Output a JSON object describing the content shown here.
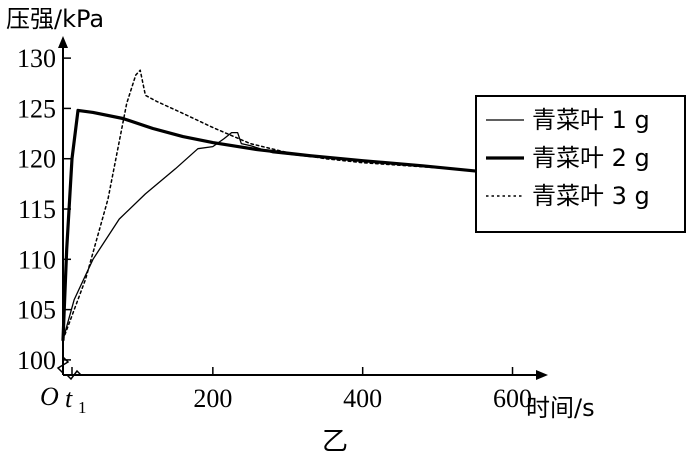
{
  "chart_data": {
    "type": "line",
    "caption": "乙",
    "xlabel": "时间/s",
    "ylabel": "压强/kPa",
    "origin_label": "O",
    "t1_label": "t",
    "t1_sub": "1",
    "t1_value": 12,
    "xlim": [
      0,
      630
    ],
    "ylim": [
      98.5,
      132
    ],
    "x_ticks": [
      200,
      400,
      600
    ],
    "y_ticks": [
      100,
      105,
      110,
      115,
      120,
      125,
      130
    ],
    "legend_position": "right",
    "series": [
      {
        "name": "青菜叶 1 g",
        "style": "thin",
        "x": [
          0,
          15,
          40,
          75,
          110,
          150,
          180,
          200,
          215,
          225,
          233,
          238,
          250,
          280,
          330,
          400,
          480,
          575
        ],
        "y": [
          102,
          106,
          110,
          114,
          116.5,
          119,
          121,
          121.2,
          122,
          122.6,
          122.6,
          121.5,
          121.3,
          120.6,
          120.2,
          119.8,
          119.3,
          118.6
        ]
      },
      {
        "name": "青菜叶 2 g",
        "style": "thick",
        "x": [
          0,
          5,
          12,
          20,
          40,
          80,
          120,
          160,
          200,
          260,
          330,
          400,
          480,
          575
        ],
        "y": [
          102,
          111,
          120,
          124.8,
          124.6,
          124,
          123,
          122.2,
          121.6,
          120.9,
          120.3,
          119.8,
          119.3,
          118.6
        ]
      },
      {
        "name": "青菜叶 3 g",
        "style": "dotted",
        "x": [
          0,
          30,
          60,
          85,
          97,
          103,
          110,
          125,
          160,
          200,
          250,
          300,
          350,
          400,
          480,
          575
        ],
        "y": [
          102,
          108,
          116,
          125.5,
          128.3,
          128.8,
          126.3,
          125.7,
          124.5,
          123.1,
          121.5,
          120.6,
          120,
          119.6,
          119.2,
          118.7
        ]
      }
    ]
  }
}
